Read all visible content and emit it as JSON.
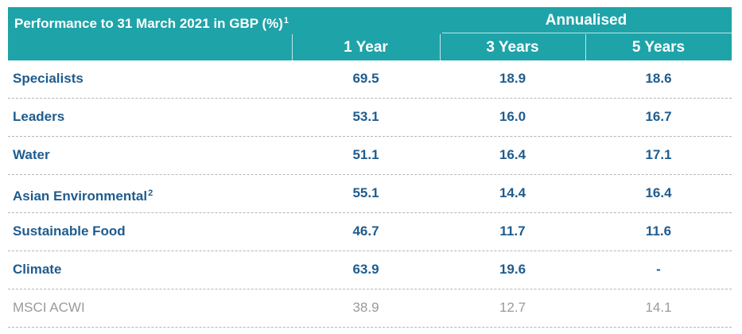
{
  "table": {
    "title": "Performance to 31 March 2021 in GBP (%)",
    "title_footnote": "1",
    "group_header": "Annualised",
    "columns": [
      "1 Year",
      "3 Years",
      "5 Years"
    ],
    "rows": [
      {
        "name": "Specialists",
        "footnote": "",
        "values": [
          "69.5",
          "18.9",
          "18.6"
        ]
      },
      {
        "name": "Leaders",
        "footnote": "",
        "values": [
          "53.1",
          "16.0",
          "16.7"
        ]
      },
      {
        "name": "Water",
        "footnote": "",
        "values": [
          "51.1",
          "16.4",
          "17.1"
        ]
      },
      {
        "name": "Asian Environmental",
        "footnote": "2",
        "values": [
          "55.1",
          "14.4",
          "16.4"
        ]
      },
      {
        "name": "Sustainable Food",
        "footnote": "",
        "values": [
          "46.7",
          "11.7",
          "11.6"
        ]
      },
      {
        "name": "Climate",
        "footnote": "",
        "values": [
          "63.9",
          "19.6",
          "-"
        ]
      },
      {
        "name": "MSCI ACWI",
        "footnote": "",
        "values": [
          "38.9",
          "12.7",
          "14.1"
        ]
      }
    ]
  },
  "colors": {
    "header_bg": "#1ea3a8",
    "row_text": "#1f5c8e",
    "benchmark_text": "#9a9a9a"
  }
}
